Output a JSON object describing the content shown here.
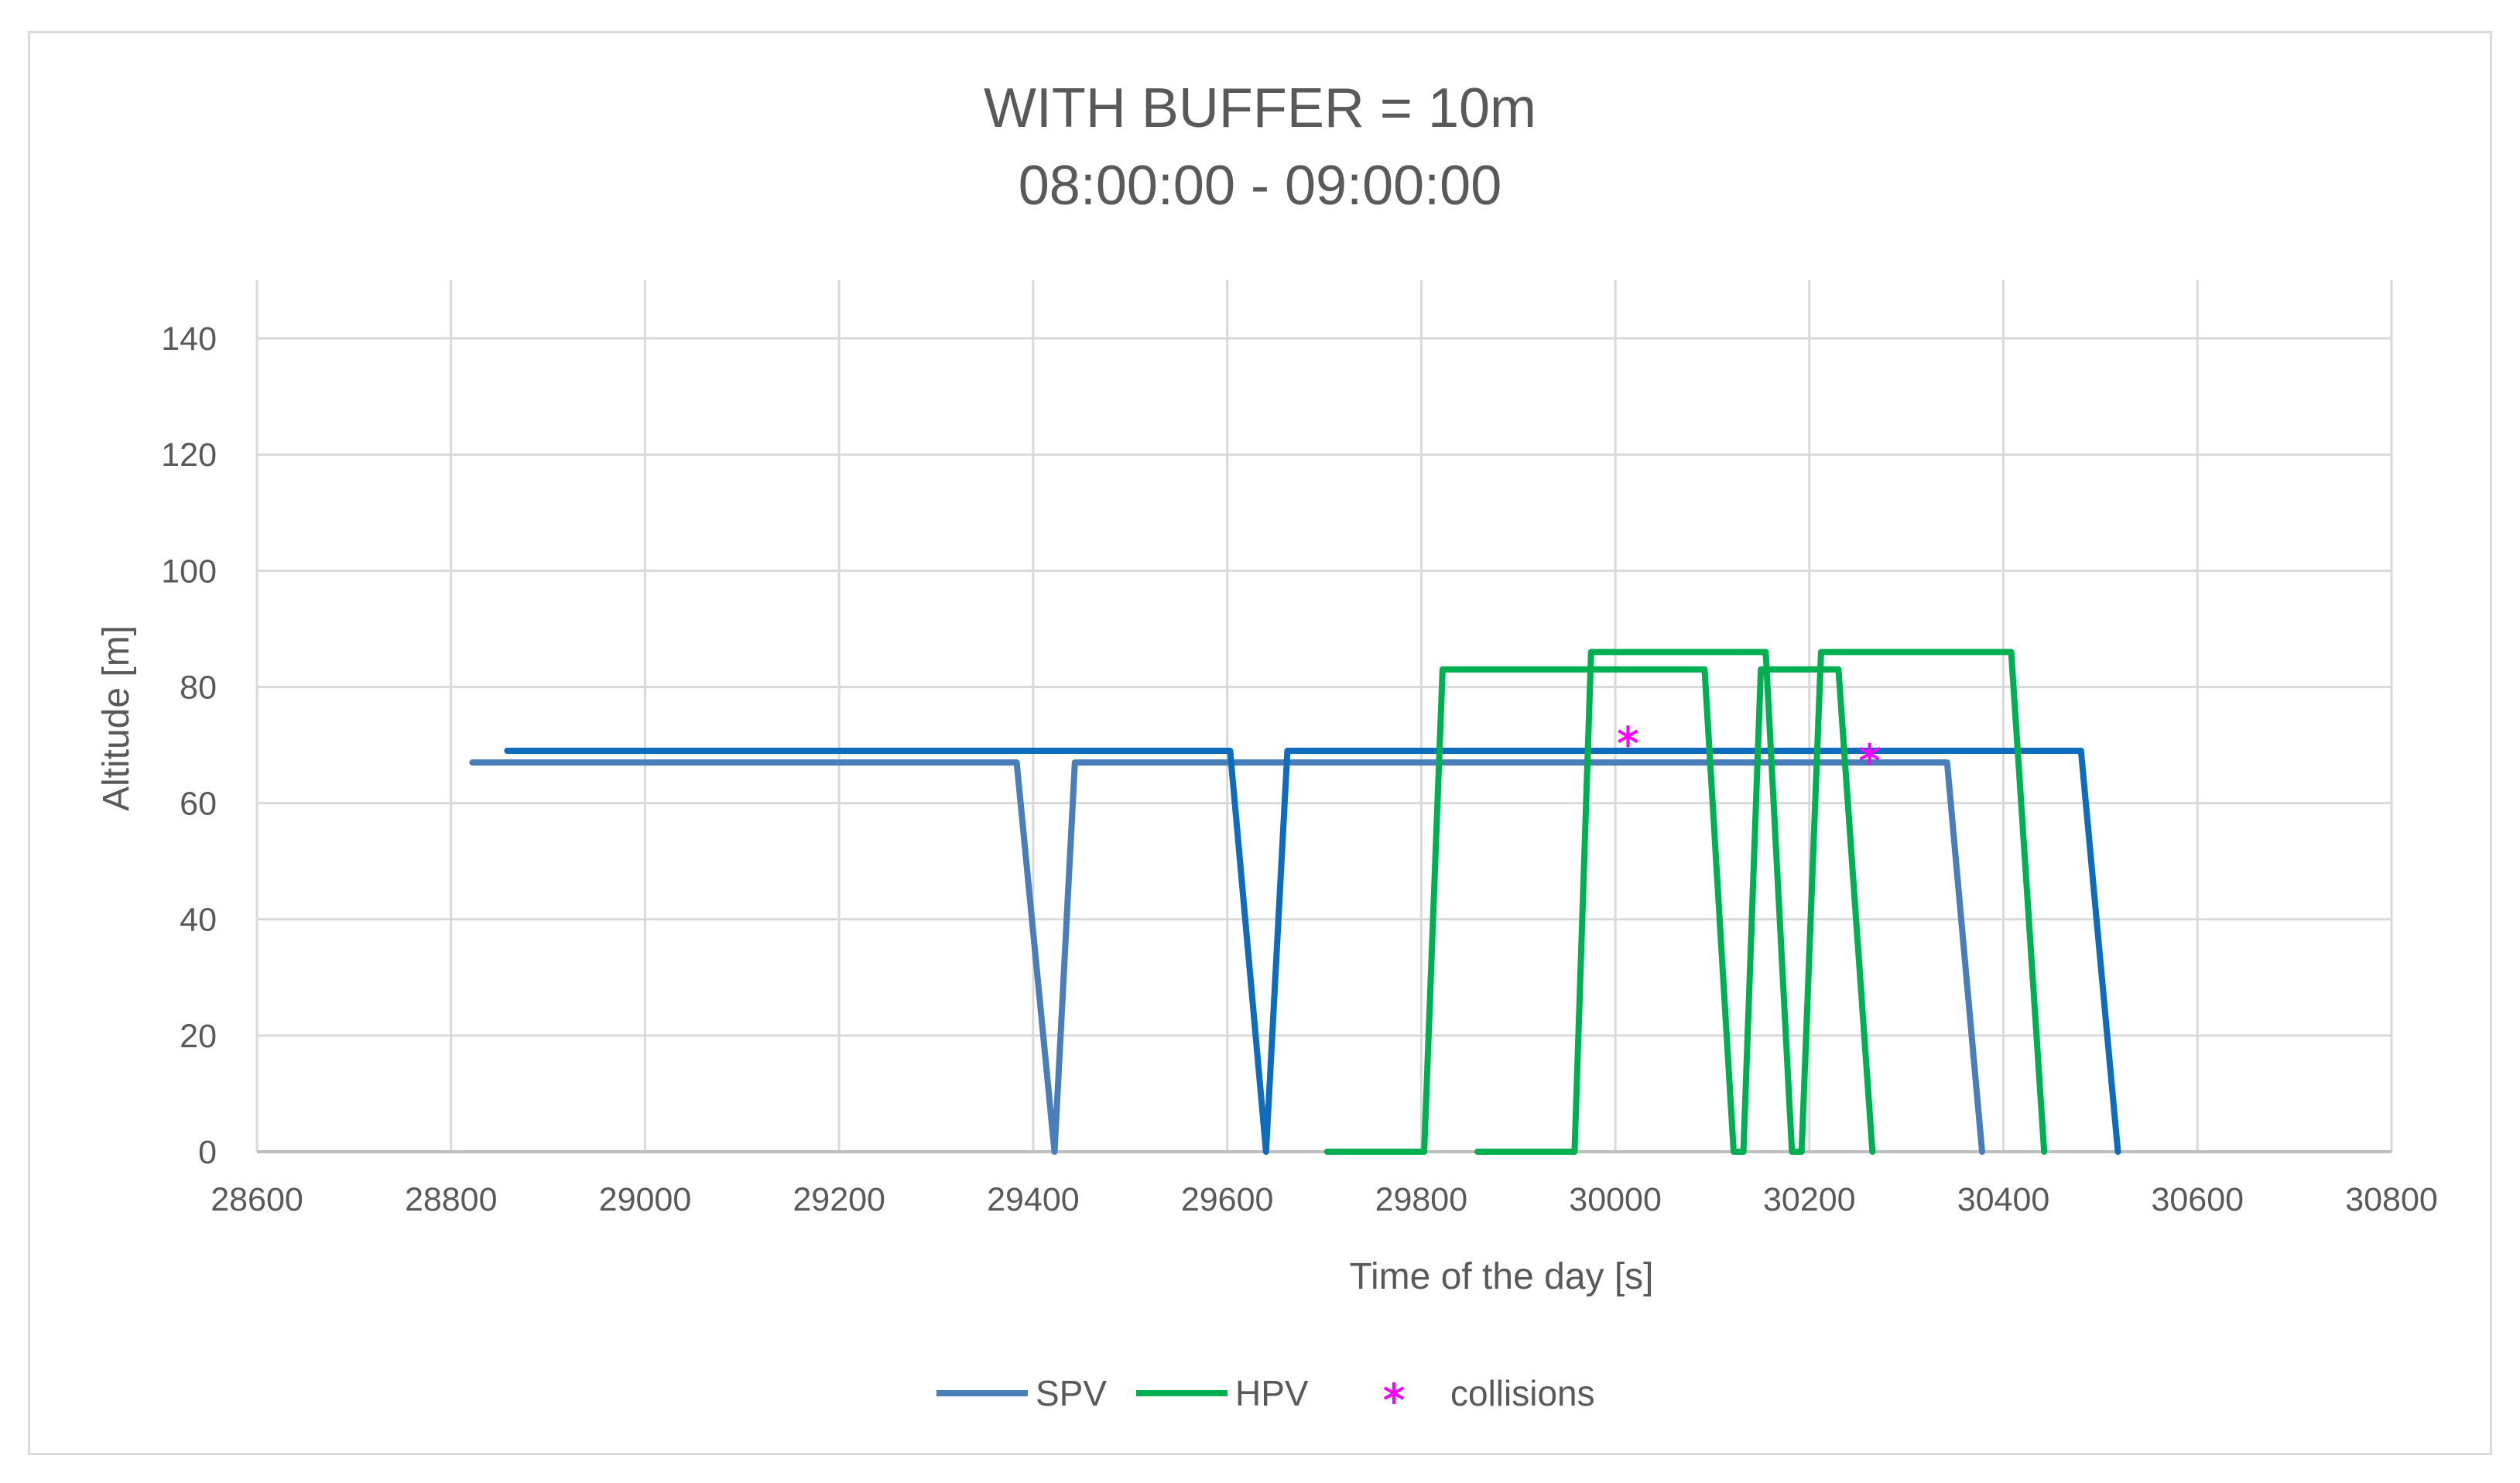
{
  "chart_data": {
    "type": "line",
    "title": "WITH BUFFER = 10m",
    "subtitle": "08:00:00 - 09:00:00",
    "xlabel": "Time of the day [s]",
    "ylabel": "Altitude [m]",
    "xlim": [
      28600,
      30800
    ],
    "ylim": [
      0,
      150
    ],
    "xticks": [
      28600,
      28800,
      29000,
      29200,
      29400,
      29600,
      29800,
      30000,
      30200,
      30400,
      30600,
      30800
    ],
    "yticks": [
      0,
      20,
      40,
      60,
      80,
      100,
      120,
      140
    ],
    "grid": true,
    "legend_position": "bottom",
    "legend": [
      "SPV",
      "HPV",
      "collisions"
    ],
    "series": [
      {
        "name": "SPV",
        "color": "#4a7ebb",
        "kind": "line",
        "tracks": [
          [
            [
              28822,
              67
            ],
            [
              29383,
              67
            ],
            [
              29422,
              0
            ],
            [
              29443,
              67
            ],
            [
              30342,
              67
            ],
            [
              30378,
              0
            ]
          ]
        ]
      },
      {
        "name": "SPV",
        "color": "#0f6cbd",
        "kind": "line",
        "hide_in_legend": true,
        "tracks": [
          [
            [
              28858,
              69
            ],
            [
              29603,
              69
            ],
            [
              29640,
              0
            ],
            [
              29662,
              69
            ],
            [
              30480,
              69
            ],
            [
              30518,
              0
            ]
          ]
        ]
      },
      {
        "name": "HPV",
        "color": "#00b050",
        "kind": "line",
        "tracks": [
          [
            [
              29703,
              0
            ],
            [
              29803,
              0
            ],
            [
              29822,
              83
            ],
            [
              30092,
              83
            ],
            [
              30122,
              0
            ],
            [
              30132,
              0
            ],
            [
              30150,
              83
            ],
            [
              30230,
              83
            ],
            [
              30265,
              0
            ]
          ],
          [
            [
              29858,
              0
            ],
            [
              29958,
              0
            ],
            [
              29975,
              86
            ],
            [
              30155,
              86
            ],
            [
              30182,
              0
            ],
            [
              30192,
              0
            ],
            [
              30212,
              86
            ],
            [
              30408,
              86
            ],
            [
              30442,
              0
            ]
          ]
        ]
      },
      {
        "name": "collisions",
        "color": "#ff00ff",
        "kind": "marker",
        "points": [
          [
            30013,
            71.5
          ],
          [
            30262,
            68.5
          ]
        ]
      }
    ]
  }
}
